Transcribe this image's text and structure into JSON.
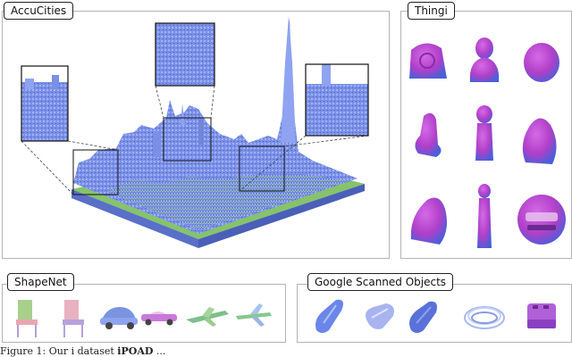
{
  "panels": {
    "accucities": "AccuCities",
    "thingi": "Thingi",
    "shapenet": "ShapeNet",
    "gso": "Google Scanned Objects"
  },
  "caption": {
    "lead": "Figure 1: Our i",
    "mid": "dataset",
    "bold": "iPOAD",
    "tail": "..."
  },
  "colors": {
    "building": "#7a8fe6",
    "ground": "#86c36a",
    "thingi_magenta": "#b040c8",
    "panel_border": "#b4b4b4",
    "shoe_blue": "#6a86e8"
  },
  "icons": {
    "chair": "chair-icon",
    "car": "car-icon",
    "airplane": "airplane-icon",
    "shoe": "shoe-icon",
    "rope": "rope-coil-icon",
    "toaster": "toaster-icon",
    "statue": "statue-icon"
  }
}
